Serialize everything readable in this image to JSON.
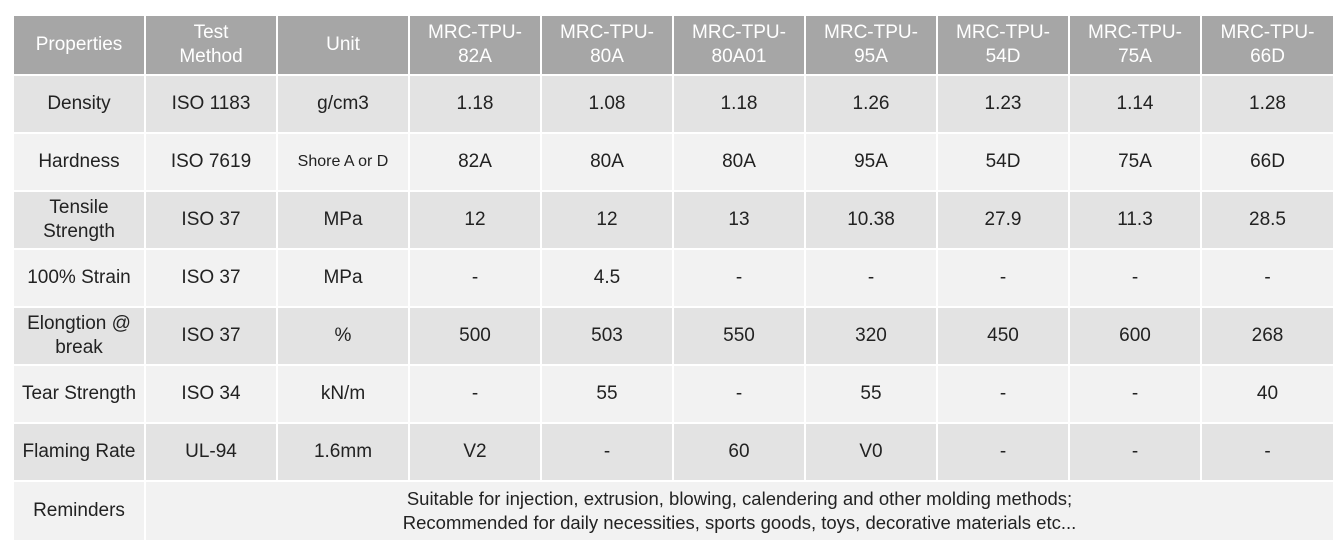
{
  "headers": [
    "Properties",
    "Test Method",
    "Unit",
    "MRC-TPU-82A",
    "MRC-TPU-80A",
    "MRC-TPU-80A01",
    "MRC-TPU-95A",
    "MRC-TPU-54D",
    "MRC-TPU-75A",
    "MRC-TPU-66D"
  ],
  "rows": [
    {
      "property": "Density",
      "method": "ISO 1183",
      "unit": "g/cm3",
      "values": [
        "1.18",
        "1.08",
        "1.18",
        "1.26",
        "1.23",
        "1.14",
        "1.28"
      ]
    },
    {
      "property": "Hardness",
      "method": "ISO 7619",
      "unit": "Shore A or D",
      "values": [
        "82A",
        "80A",
        "80A",
        "95A",
        "54D",
        "75A",
        "66D"
      ]
    },
    {
      "property": "Tensile Strength",
      "method": "ISO 37",
      "unit": "MPa",
      "values": [
        "12",
        "12",
        "13",
        "10.38",
        "27.9",
        "11.3",
        "28.5"
      ]
    },
    {
      "property": "100% Strain",
      "method": "ISO 37",
      "unit": "MPa",
      "values": [
        "-",
        "4.5",
        "-",
        "-",
        "-",
        "-",
        "-"
      ]
    },
    {
      "property": "Elongtion @ break",
      "method": "ISO 37",
      "unit": "%",
      "values": [
        "500",
        "503",
        "550",
        "320",
        "450",
        "600",
        "268"
      ]
    },
    {
      "property": "Tear Strength",
      "method": "ISO 34",
      "unit": "kN/m",
      "values": [
        "-",
        "55",
        "-",
        "55",
        "-",
        "-",
        "40"
      ]
    },
    {
      "property": "Flaming Rate",
      "method": "UL-94",
      "unit": "1.6mm",
      "values": [
        "V2",
        "-",
        "60",
        "V0",
        "-",
        "-",
        "-"
      ]
    }
  ],
  "reminders": {
    "label": "Reminders",
    "lines": [
      "Suitable for injection, extrusion, blowing, calendering and other molding methods;",
      "Recommended for daily necessities, sports goods, toys, decorative materials etc..."
    ]
  }
}
